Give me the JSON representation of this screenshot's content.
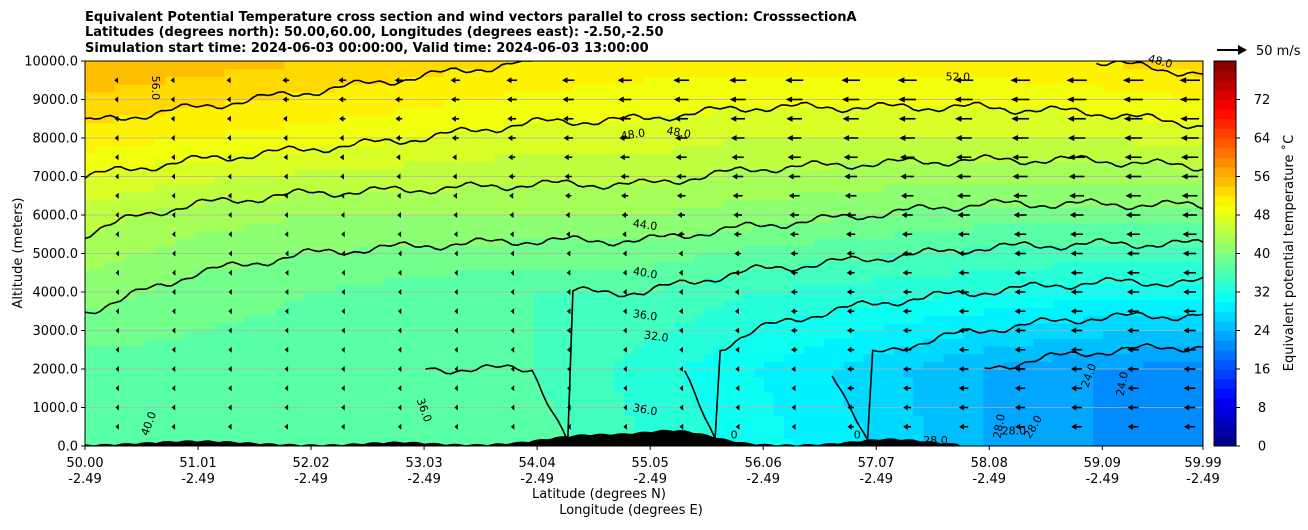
{
  "chart_data": {
    "type": "heatmap",
    "title_lines": [
      "Equivalent Potential Temperature cross section and wind vectors parallel to cross section: CrosssectionA",
      "Latitudes (degrees north): 50.00,60.00, Longitudes (degrees east): -2.50,-2.50",
      "Simulation start time: 2024-06-03 00:00:00, Valid time: 2024-06-03 13:00:00"
    ],
    "ylabel": "Altitude (meters)",
    "xlabel_lines": [
      "Latitude (degrees N)",
      "Longitude (degrees E)"
    ],
    "ylim": [
      0,
      10000
    ],
    "y_ticks": [
      0,
      1000,
      2000,
      3000,
      4000,
      5000,
      6000,
      7000,
      8000,
      9000,
      10000
    ],
    "y_tick_labels": [
      "0.0",
      "1000.0",
      "2000.0",
      "3000.0",
      "4000.0",
      "5000.0",
      "6000.0",
      "7000.0",
      "8000.0",
      "9000.0",
      "10000.0"
    ],
    "grid": "horizontal",
    "x_ticks": [
      {
        "lat": "50.00",
        "lon": "-2.49"
      },
      {
        "lat": "51.01",
        "lon": "-2.49"
      },
      {
        "lat": "52.02",
        "lon": "-2.49"
      },
      {
        "lat": "53.03",
        "lon": "-2.49"
      },
      {
        "lat": "54.04",
        "lon": "-2.49"
      },
      {
        "lat": "55.05",
        "lon": "-2.49"
      },
      {
        "lat": "56.06",
        "lon": "-2.49"
      },
      {
        "lat": "57.07",
        "lon": "-2.49"
      },
      {
        "lat": "58.08",
        "lon": "-2.49"
      },
      {
        "lat": "59.09",
        "lon": "-2.49"
      },
      {
        "lat": "59.99",
        "lon": "-2.49"
      }
    ],
    "colorbar": {
      "label": "Equivalent potential temperature ˚C",
      "range": [
        0,
        80
      ],
      "ticks": [
        "0",
        "8",
        "16",
        "24",
        "32",
        "40",
        "48",
        "56",
        "64",
        "72"
      ],
      "colormap": "jet"
    },
    "quiver_key": {
      "label": "50 m/s"
    },
    "contour_labels": [
      "56.0",
      "48.0",
      "48.0",
      "52.0",
      "48.0",
      "44.0",
      "40.0",
      "36.0",
      "32.0",
      "36.0",
      "36.0",
      "40.0",
      "28.0",
      "28.0",
      "28.0",
      "28.0",
      "24.0",
      "24.0",
      "0",
      "0"
    ],
    "theta_e_profile_by_latitude": {
      "note_units": "degC",
      "lat": [
        50.0,
        51.0,
        52.0,
        53.0,
        54.0,
        55.0,
        56.0,
        57.0,
        58.0,
        59.0,
        59.99
      ],
      "surface": [
        38,
        38,
        38,
        37,
        37,
        34,
        31,
        28,
        24,
        22,
        21
      ],
      "z_2000": [
        37,
        37,
        37,
        36,
        36,
        33,
        30,
        27,
        24,
        22,
        21
      ],
      "z_4000": [
        41,
        39,
        38,
        37,
        36,
        36,
        34,
        33,
        32,
        31,
        31
      ],
      "z_6000": [
        45,
        43,
        42,
        42,
        42,
        42,
        41,
        40,
        39,
        39,
        39
      ],
      "z_8000": [
        51,
        50,
        49,
        48,
        47,
        47,
        46,
        46,
        46,
        46,
        47
      ],
      "z_10000": [
        56,
        55,
        54,
        53,
        52,
        51,
        51,
        51,
        51,
        52,
        53
      ]
    },
    "wind_parallel_ms": {
      "lat": [
        50.0,
        51.0,
        52.0,
        53.0,
        54.0,
        55.0,
        56.0,
        57.0,
        58.0,
        59.0,
        59.99
      ],
      "surface": [
        -1,
        -2,
        -2,
        -1,
        -1,
        -2,
        -3,
        -5,
        -7,
        -8,
        -8
      ],
      "z_5000": [
        -1,
        -1,
        -1,
        -1,
        -2,
        -3,
        -5,
        -6,
        -8,
        -9,
        -10
      ],
      "z_10000": [
        -3,
        -4,
        -6,
        -7,
        -9,
        -12,
        -14,
        -15,
        -15,
        -16,
        -16
      ]
    }
  }
}
